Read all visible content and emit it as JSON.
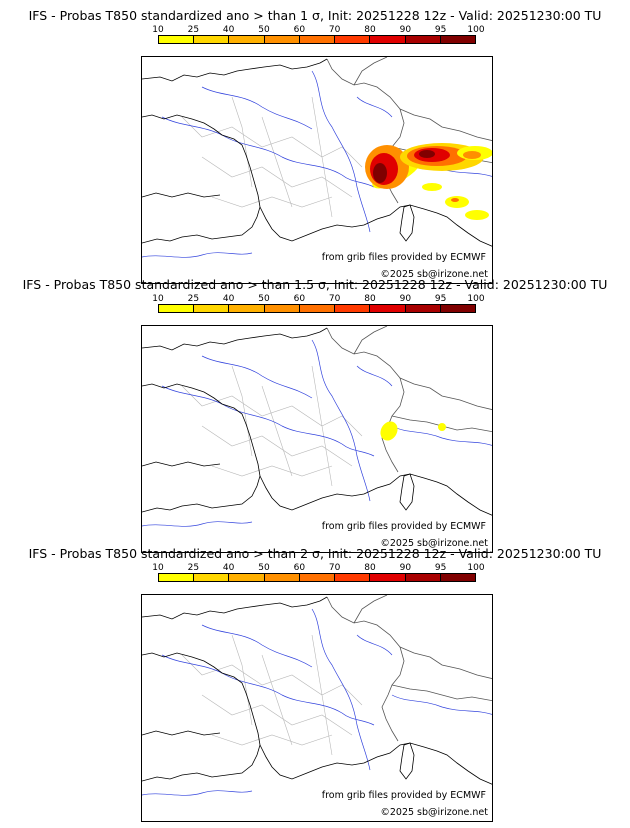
{
  "legend": {
    "ticks": [
      "10",
      "25",
      "40",
      "50",
      "60",
      "70",
      "80",
      "90",
      "95",
      "100"
    ],
    "colors": [
      "#ffff00",
      "#ffd700",
      "#ffb000",
      "#ff9000",
      "#ff7000",
      "#ff3a00",
      "#e00000",
      "#a80000",
      "#800000",
      "#500000"
    ]
  },
  "credits": {
    "source": "from grib files provided by ECMWF",
    "copyright": "©2025 sb@irizone.net"
  },
  "panels": [
    {
      "title": "IFS - Probas T850  standardized ano > than 1 σ, Init: 20251228 12z - Valid: 20251230:00 TU"
    },
    {
      "title": "IFS - Probas T850  standardized ano > than 1.5 σ, Init: 20251228 12z - Valid: 20251230:00 TU"
    },
    {
      "title": "IFS - Probas T850  standardized ano > than 2 σ, Init: 20251228 12z - Valid: 20251230:00 TU"
    }
  ]
}
